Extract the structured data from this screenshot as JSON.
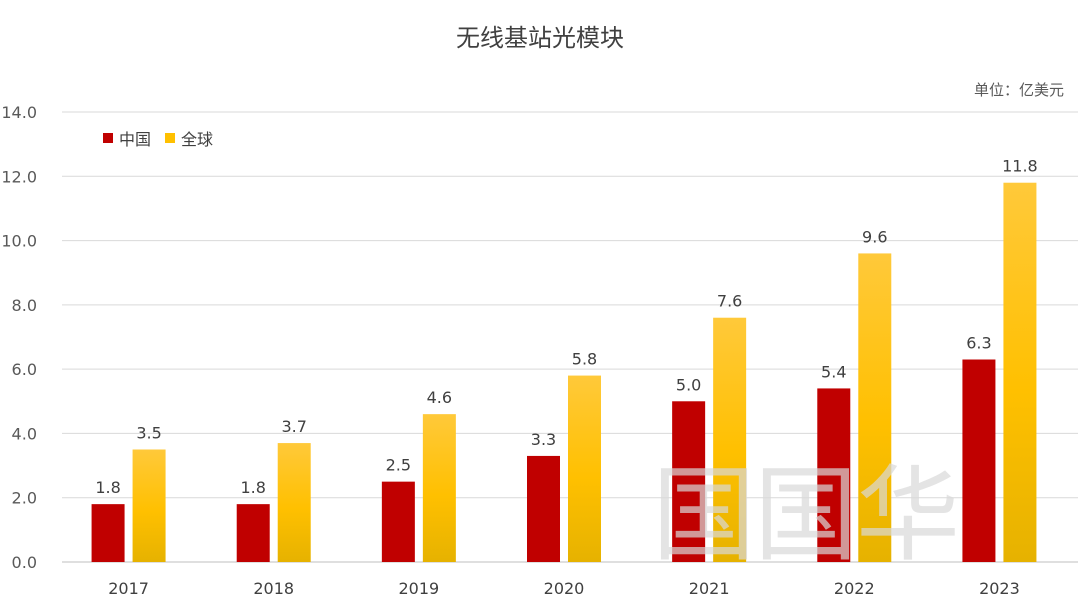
{
  "chart_data": {
    "type": "bar",
    "title": "无线基站光模块",
    "unit_note": "单位：亿美元",
    "categories": [
      "2017",
      "2018",
      "2019",
      "2020",
      "2021",
      "2022",
      "2023"
    ],
    "series": [
      {
        "name": "中国",
        "color": "#C00000",
        "values": [
          1.8,
          1.8,
          2.5,
          3.3,
          5.0,
          5.4,
          6.3
        ]
      },
      {
        "name": "全球",
        "color": "#FFC000",
        "values": [
          3.5,
          3.7,
          4.6,
          5.8,
          7.6,
          9.6,
          11.8
        ]
      }
    ],
    "ylim": [
      0,
      14
    ],
    "yticks": [
      "0.0",
      "2.0",
      "4.0",
      "6.0",
      "8.0",
      "10.0",
      "12.0",
      "14.0"
    ],
    "ytick_values": [
      0,
      2,
      4,
      6,
      8,
      10,
      12,
      14
    ],
    "grid": true,
    "legend_position": "top-left",
    "xlabel": "",
    "ylabel": ""
  },
  "watermark": "国国华"
}
